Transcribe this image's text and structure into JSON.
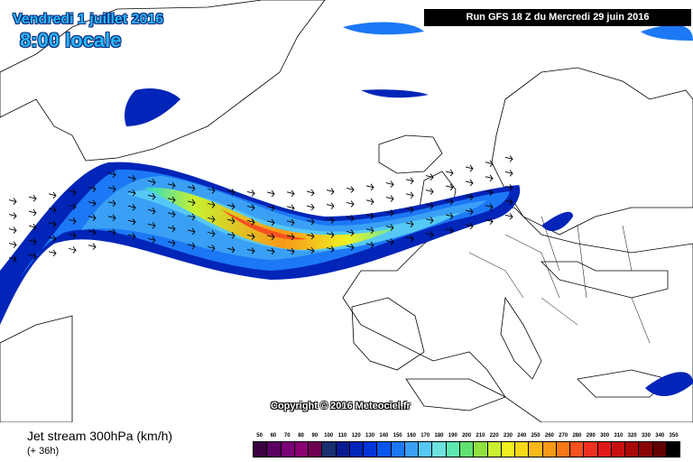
{
  "header": {
    "date": "Vendredi 1 juillet 2016",
    "time": "8:00 locale",
    "run": "Run GFS 18 Z du Mercredi 29 juin 2016"
  },
  "copyright": "Copyright © 2016 Meteociel.fr",
  "footer": {
    "title": "Jet stream 300hPa (km/h)",
    "lead": "(+ 36h)"
  },
  "legend": {
    "values": [
      "50",
      "60",
      "70",
      "80",
      "90",
      "100",
      "110",
      "120",
      "130",
      "140",
      "150",
      "160",
      "170",
      "180",
      "190",
      "200",
      "210",
      "220",
      "230",
      "240",
      "250",
      "260",
      "270",
      "280",
      "290",
      "300",
      "310",
      "320",
      "330",
      "340",
      "350"
    ],
    "colors": [
      "#3a003f",
      "#5a0060",
      "#7a0078",
      "#8a0070",
      "#6e0050",
      "#1a2e70",
      "#0a1a90",
      "#0025b8",
      "#0035d8",
      "#0a55f0",
      "#1d78f5",
      "#3aa0f5",
      "#55c8f5",
      "#6de0e0",
      "#5ce8b0",
      "#60e070",
      "#90e040",
      "#c8f030",
      "#f0f020",
      "#f8d818",
      "#f8b818",
      "#f89818",
      "#f87818",
      "#f85020",
      "#f03020",
      "#e01818",
      "#c81010",
      "#a80808",
      "#880404",
      "#600000",
      "#000000"
    ]
  },
  "icons": [
    "wind-arrow-icon"
  ]
}
